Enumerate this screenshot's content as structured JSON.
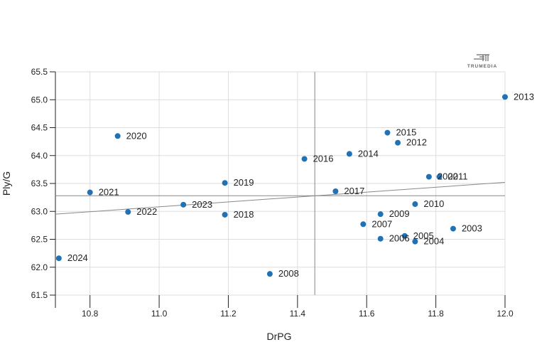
{
  "brand": {
    "logo_text": "TRUMEDIA"
  },
  "chart_data": {
    "type": "scatter",
    "title": "",
    "xlabel": "DrPG",
    "ylabel": "Ply/G",
    "xlim": [
      10.7,
      12.0
    ],
    "ylim": [
      61.5,
      65.5
    ],
    "xticks": [
      "10.8",
      "11.0",
      "11.2",
      "11.4",
      "11.6",
      "11.8",
      "12.0"
    ],
    "yticks": [
      "61.5",
      "62.0",
      "62.5",
      "63.0",
      "63.5",
      "64.0",
      "64.5",
      "65.0",
      "65.5"
    ],
    "grid": true,
    "point_color": "#2171b5",
    "reference_lines": {
      "x_mean": 11.45,
      "y_mean": 63.28
    },
    "trendline": {
      "x1": 10.7,
      "y1": 62.95,
      "x2": 12.0,
      "y2": 63.52
    },
    "points": [
      {
        "label": "2003",
        "x": 11.85,
        "y": 62.69
      },
      {
        "label": "2004",
        "x": 11.74,
        "y": 62.46
      },
      {
        "label": "2005",
        "x": 11.71,
        "y": 62.56
      },
      {
        "label": "2006",
        "x": 11.64,
        "y": 62.51
      },
      {
        "label": "2007",
        "x": 11.59,
        "y": 62.77
      },
      {
        "label": "2008",
        "x": 11.32,
        "y": 61.88
      },
      {
        "label": "2009",
        "x": 11.64,
        "y": 62.95
      },
      {
        "label": "2010",
        "x": 11.74,
        "y": 63.13
      },
      {
        "label": "2011",
        "x": 11.81,
        "y": 63.62
      },
      {
        "label": "2012",
        "x": 11.69,
        "y": 64.23
      },
      {
        "label": "2013",
        "x": 12.0,
        "y": 65.05
      },
      {
        "label": "2014",
        "x": 11.55,
        "y": 64.03
      },
      {
        "label": "2015",
        "x": 11.66,
        "y": 64.41
      },
      {
        "label": "2016",
        "x": 11.42,
        "y": 63.94
      },
      {
        "label": "2017",
        "x": 11.51,
        "y": 63.36
      },
      {
        "label": "2018",
        "x": 11.19,
        "y": 62.94
      },
      {
        "label": "2019",
        "x": 11.19,
        "y": 63.51
      },
      {
        "label": "2020",
        "x": 10.88,
        "y": 64.35
      },
      {
        "label": "2021",
        "x": 10.8,
        "y": 63.34
      },
      {
        "label": "2022",
        "x": 10.91,
        "y": 62.99
      },
      {
        "label": "2023",
        "x": 11.07,
        "y": 63.12
      },
      {
        "label": "2024",
        "x": 10.71,
        "y": 62.16
      },
      {
        "label": "2002",
        "x": 11.78,
        "y": 63.62
      }
    ]
  }
}
